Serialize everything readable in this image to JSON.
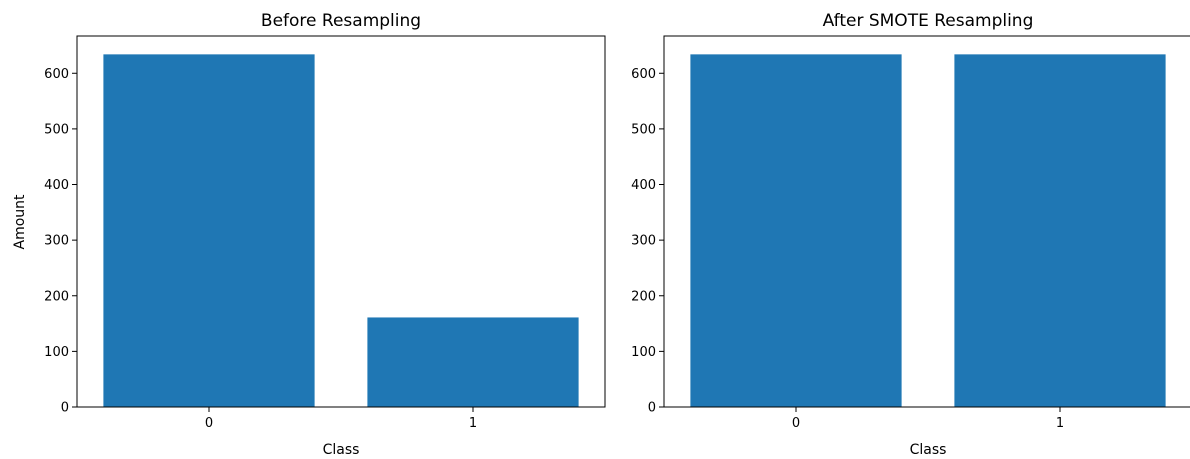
{
  "chart_data": [
    {
      "type": "bar",
      "title": "Before Resampling",
      "xlabel": "Class",
      "ylabel": "Amount",
      "categories": [
        "0",
        "1"
      ],
      "values": [
        634,
        161
      ],
      "ylim": [
        0,
        667
      ],
      "yticks": [
        0,
        100,
        200,
        300,
        400,
        500,
        600
      ],
      "grid": false,
      "color": "#1f77b4"
    },
    {
      "type": "bar",
      "title": "After SMOTE Resampling",
      "xlabel": "Class",
      "ylabel": "",
      "categories": [
        "0",
        "1"
      ],
      "values": [
        634,
        634
      ],
      "ylim": [
        0,
        667
      ],
      "yticks": [
        0,
        100,
        200,
        300,
        400,
        500,
        600
      ],
      "grid": false,
      "color": "#1f77b4"
    }
  ]
}
